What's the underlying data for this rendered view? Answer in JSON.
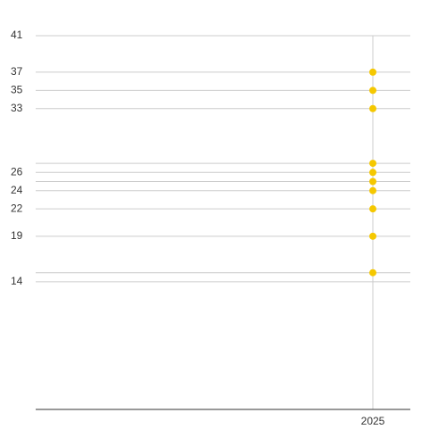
{
  "chart_data": {
    "type": "scatter",
    "x": [
      2025,
      2025,
      2025,
      2025,
      2025,
      2025,
      2025,
      2025,
      2025,
      2025
    ],
    "values": [
      37,
      35,
      33,
      27,
      26,
      25,
      24,
      22,
      19,
      15
    ],
    "color": "#f5c800",
    "xlim": [
      2016,
      2026
    ],
    "xticks": [
      2025
    ],
    "ylim": [
      0,
      41
    ],
    "yticks": [
      14,
      {
        "value": 15,
        "label": null
      },
      19,
      22,
      24,
      {
        "value": 25,
        "label": null
      },
      26,
      {
        "value": 27,
        "label": null
      },
      33,
      35,
      37,
      41
    ],
    "grid": true
  }
}
